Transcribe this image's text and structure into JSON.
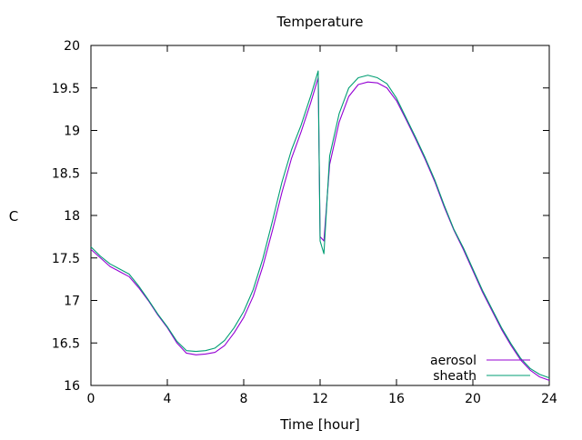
{
  "chart_data": {
    "type": "line",
    "title": "Temperature",
    "xlabel": "Time [hour]",
    "ylabel": "C",
    "xlim": [
      0,
      24
    ],
    "ylim": [
      16,
      20
    ],
    "xticks": [
      0,
      4,
      8,
      12,
      16,
      20,
      24
    ],
    "yticks": [
      16,
      16.5,
      17,
      17.5,
      18,
      18.5,
      19,
      19.5,
      20
    ],
    "grid": false,
    "legend_position": "bottom-right",
    "series": [
      {
        "name": "aerosol",
        "color": "#9400d3",
        "points": [
          [
            0,
            17.6
          ],
          [
            0.5,
            17.5
          ],
          [
            1,
            17.4
          ],
          [
            1.5,
            17.34
          ],
          [
            2,
            17.28
          ],
          [
            2.5,
            17.15
          ],
          [
            3,
            17.0
          ],
          [
            3.5,
            16.83
          ],
          [
            4,
            16.68
          ],
          [
            4.5,
            16.5
          ],
          [
            5,
            16.38
          ],
          [
            5.5,
            16.36
          ],
          [
            6,
            16.37
          ],
          [
            6.5,
            16.39
          ],
          [
            7,
            16.47
          ],
          [
            7.5,
            16.62
          ],
          [
            8,
            16.8
          ],
          [
            8.5,
            17.05
          ],
          [
            9,
            17.4
          ],
          [
            9.5,
            17.82
          ],
          [
            10,
            18.27
          ],
          [
            10.5,
            18.67
          ],
          [
            11,
            18.98
          ],
          [
            11.5,
            19.32
          ],
          [
            11.9,
            19.62
          ],
          [
            12.0,
            17.75
          ],
          [
            12.2,
            17.7
          ],
          [
            12.5,
            18.6
          ],
          [
            13,
            19.1
          ],
          [
            13.5,
            19.4
          ],
          [
            14,
            19.54
          ],
          [
            14.5,
            19.57
          ],
          [
            15,
            19.56
          ],
          [
            15.5,
            19.5
          ],
          [
            16,
            19.35
          ],
          [
            16.5,
            19.13
          ],
          [
            17,
            18.9
          ],
          [
            17.5,
            18.66
          ],
          [
            18,
            18.4
          ],
          [
            18.5,
            18.1
          ],
          [
            19,
            17.83
          ],
          [
            19.5,
            17.6
          ],
          [
            20,
            17.35
          ],
          [
            20.5,
            17.1
          ],
          [
            21,
            16.88
          ],
          [
            21.5,
            16.66
          ],
          [
            22,
            16.47
          ],
          [
            22.5,
            16.3
          ],
          [
            23,
            16.18
          ],
          [
            23.5,
            16.1
          ],
          [
            24,
            16.06
          ]
        ]
      },
      {
        "name": "sheath",
        "color": "#009e73",
        "points": [
          [
            0,
            17.63
          ],
          [
            0.5,
            17.52
          ],
          [
            1,
            17.43
          ],
          [
            1.5,
            17.37
          ],
          [
            2,
            17.31
          ],
          [
            2.5,
            17.17
          ],
          [
            3,
            17.01
          ],
          [
            3.5,
            16.84
          ],
          [
            4,
            16.69
          ],
          [
            4.5,
            16.52
          ],
          [
            5,
            16.41
          ],
          [
            5.5,
            16.4
          ],
          [
            6,
            16.41
          ],
          [
            6.5,
            16.44
          ],
          [
            7,
            16.53
          ],
          [
            7.5,
            16.68
          ],
          [
            8,
            16.87
          ],
          [
            8.5,
            17.13
          ],
          [
            9,
            17.49
          ],
          [
            9.5,
            17.93
          ],
          [
            10,
            18.39
          ],
          [
            10.5,
            18.77
          ],
          [
            11,
            19.06
          ],
          [
            11.5,
            19.4
          ],
          [
            11.9,
            19.7
          ],
          [
            12.0,
            17.7
          ],
          [
            12.2,
            17.55
          ],
          [
            12.5,
            18.7
          ],
          [
            13,
            19.2
          ],
          [
            13.5,
            19.5
          ],
          [
            14,
            19.62
          ],
          [
            14.5,
            19.65
          ],
          [
            15,
            19.62
          ],
          [
            15.5,
            19.55
          ],
          [
            16,
            19.38
          ],
          [
            16.5,
            19.15
          ],
          [
            17,
            18.92
          ],
          [
            17.5,
            18.68
          ],
          [
            18,
            18.42
          ],
          [
            18.5,
            18.12
          ],
          [
            19,
            17.84
          ],
          [
            19.5,
            17.62
          ],
          [
            20,
            17.37
          ],
          [
            20.5,
            17.12
          ],
          [
            21,
            16.9
          ],
          [
            21.5,
            16.68
          ],
          [
            22,
            16.49
          ],
          [
            22.5,
            16.32
          ],
          [
            23,
            16.2
          ],
          [
            23.5,
            16.13
          ],
          [
            24,
            16.09
          ]
        ]
      }
    ]
  }
}
